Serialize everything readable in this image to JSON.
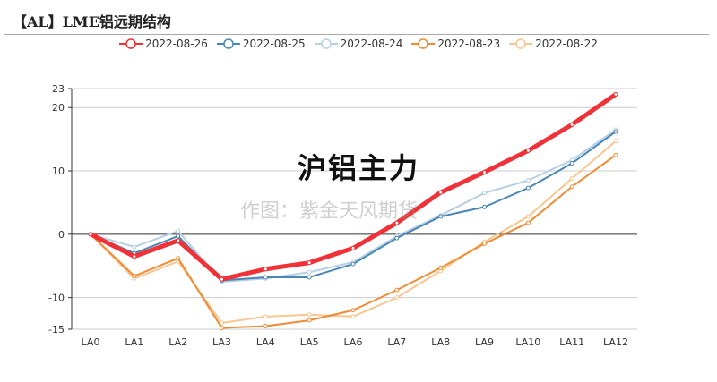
{
  "title": "【AL】LME铝远期结构",
  "watermark_main": "沪铝主力",
  "watermark_credit": "作图：紫金天风期货",
  "chart_data": {
    "type": "line",
    "title": "【AL】LME铝远期结构",
    "categories": [
      "LA0",
      "LA1",
      "LA2",
      "LA3",
      "LA4",
      "LA5",
      "LA6",
      "LA7",
      "LA8",
      "LA9",
      "LA10",
      "LA11",
      "LA12"
    ],
    "ylim": [
      -15,
      23
    ],
    "yticks": [
      -15,
      -10,
      0,
      10,
      20,
      23
    ],
    "grid": true,
    "legend": "top",
    "series": [
      {
        "name": "2022-08-26",
        "color": "#f03238",
        "values": [
          0,
          -3.5,
          -1,
          -7.1,
          -5.5,
          -4.5,
          -2.2,
          1.8,
          6.6,
          9.8,
          13.2,
          17.3,
          22.1
        ]
      },
      {
        "name": "2022-08-25",
        "color": "#4a86b4",
        "values": [
          0,
          -3,
          -0.3,
          -7.3,
          -6.8,
          -6.8,
          -4.7,
          -0.6,
          2.8,
          4.3,
          7.3,
          11.2,
          16.2
        ]
      },
      {
        "name": "2022-08-24",
        "color": "#b5cfe6",
        "values": [
          0,
          -2,
          0.5,
          -7.5,
          -7,
          -6,
          -4.4,
          -0.3,
          3,
          6.5,
          8.5,
          11.7,
          16.5
        ]
      },
      {
        "name": "2022-08-23",
        "color": "#ef8b35",
        "values": [
          0,
          -6.6,
          -3.8,
          -14.8,
          -14.5,
          -13.6,
          -12,
          -8.8,
          -5.3,
          -1.5,
          1.8,
          7.5,
          12.5
        ]
      },
      {
        "name": "2022-08-22",
        "color": "#f7c690",
        "values": [
          0,
          -7,
          -4.3,
          -14,
          -13,
          -12.7,
          -13,
          -10,
          -5.8,
          -1.2,
          2.8,
          8.8,
          14.7
        ]
      }
    ]
  }
}
